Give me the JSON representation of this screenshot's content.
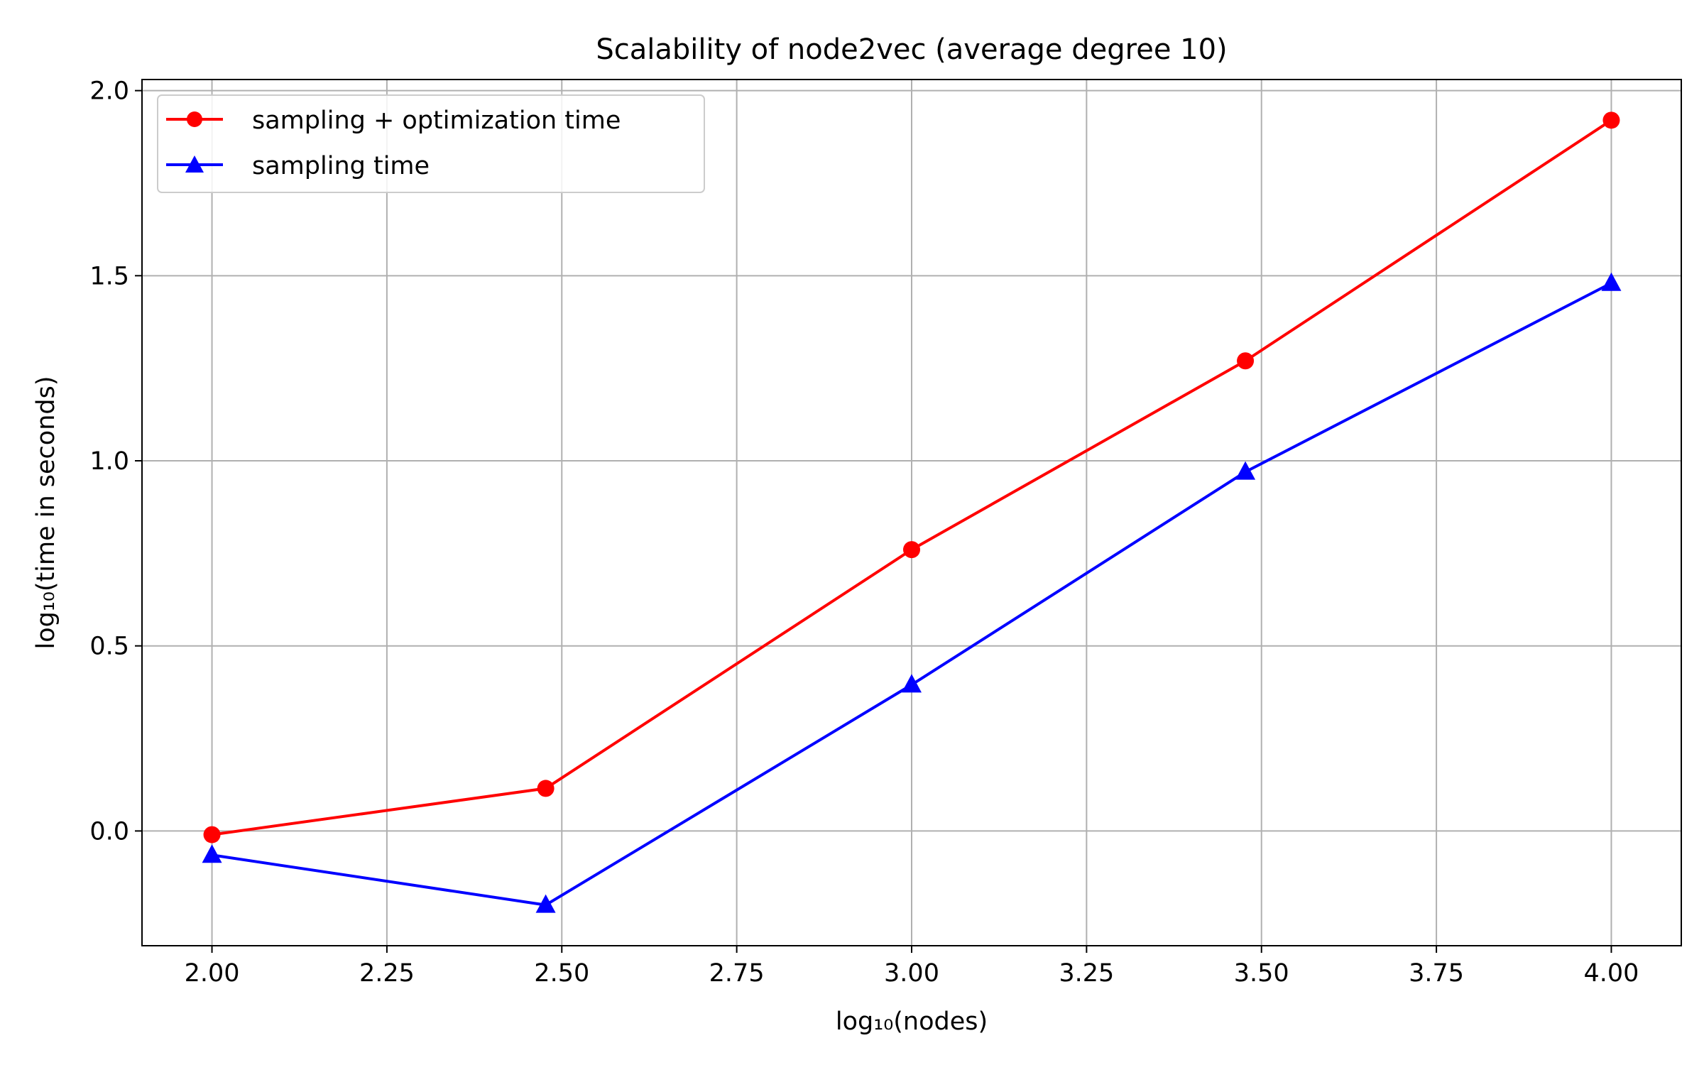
{
  "chart_data": {
    "type": "line",
    "title": "Scalability of node2vec (average degree 10)",
    "xlabel": "log₁₀(nodes)",
    "ylabel": "log₁₀(time in seconds)",
    "xlim": [
      1.9,
      4.1
    ],
    "ylim": [
      -0.31,
      2.03
    ],
    "xticks": [
      2.0,
      2.25,
      2.5,
      2.75,
      3.0,
      3.25,
      3.5,
      3.75,
      4.0
    ],
    "xtick_labels": [
      "2.00",
      "2.25",
      "2.50",
      "2.75",
      "3.00",
      "3.25",
      "3.50",
      "3.75",
      "4.00"
    ],
    "yticks": [
      0.0,
      0.5,
      1.0,
      1.5,
      2.0
    ],
    "ytick_labels": [
      "0.0",
      "0.5",
      "1.0",
      "1.5",
      "2.0"
    ],
    "grid": true,
    "legend_position": "top-left",
    "series": [
      {
        "name": "sampling + optimization time",
        "color": "#ff0000",
        "marker": "circle",
        "x": [
          2.0,
          2.477,
          3.0,
          3.477,
          4.0
        ],
        "y": [
          -0.01,
          0.115,
          0.76,
          1.27,
          1.92
        ]
      },
      {
        "name": "sampling time",
        "color": "#0000ff",
        "marker": "triangle",
        "x": [
          2.0,
          2.477,
          3.0,
          3.477,
          4.0
        ],
        "y": [
          -0.065,
          -0.2,
          0.395,
          0.97,
          1.48
        ]
      }
    ]
  }
}
